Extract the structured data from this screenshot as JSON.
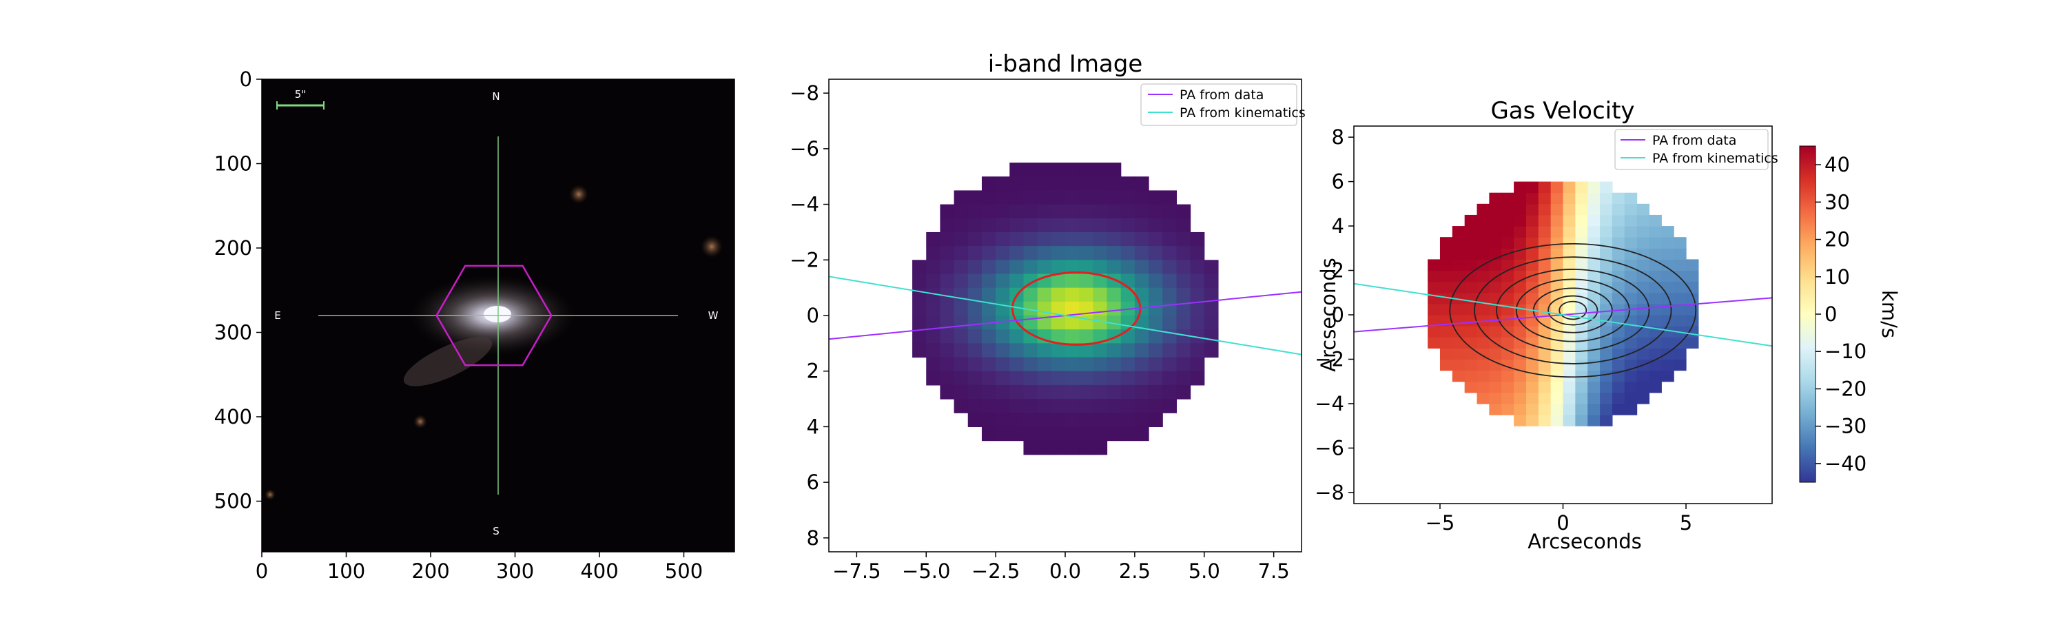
{
  "chart_data": [
    {
      "type": "image",
      "panel": "optical-cutout",
      "title": "",
      "xlabel": "",
      "ylabel": "",
      "xlim": [
        0,
        560
      ],
      "ylim": [
        560,
        0
      ],
      "xticks": [
        "0",
        "100",
        "200",
        "300",
        "400",
        "500"
      ],
      "yticks": [
        "0",
        "100",
        "200",
        "300",
        "400",
        "500"
      ],
      "scalebar_label": "5\"",
      "compass": {
        "north": "N",
        "south": "S",
        "east": "E",
        "west": "W"
      },
      "galaxy_center": [
        280,
        280
      ],
      "ifu_hexagon_center": [
        275,
        280
      ],
      "ifu_hexagon_halfwidth": 68,
      "colors": {
        "hexagon": "#c81ec8",
        "crosshair": "#7ec87e",
        "scalebar": "#7ddc7d",
        "background": "#000000"
      }
    },
    {
      "type": "heatmap",
      "panel": "i-band",
      "title": "i-band Image",
      "xlabel": "",
      "ylabel": "",
      "xlim": [
        -8.5,
        8.5
      ],
      "ylim": [
        8.5,
        -8.5
      ],
      "xticks": [
        "−7.5",
        "−5.0",
        "−2.5",
        "0.0",
        "2.5",
        "5.0",
        "7.5"
      ],
      "yticks": [
        "−8",
        "−6",
        "−4",
        "−2",
        "0",
        "2",
        "4",
        "6",
        "8"
      ],
      "pixel_size": 0.5,
      "colormap": "viridis",
      "legend": {
        "position": "top-right",
        "items": [
          {
            "label": "PA from data",
            "color": "#9b30ff"
          },
          {
            "label": "PA from kinematics",
            "color": "#40e0d0"
          }
        ]
      },
      "pa_lines": [
        {
          "label": "PA from data",
          "slope": 0.1,
          "color": "#9b30ff"
        },
        {
          "label": "PA from kinematics",
          "slope": -0.165,
          "color": "#40e0d0"
        }
      ],
      "ellipse": {
        "center": [
          0.4,
          -0.25
        ],
        "rx": 2.3,
        "ry": 1.3,
        "color": "#e02020"
      }
    },
    {
      "type": "heatmap",
      "panel": "gas-velocity",
      "title": "Gas Velocity",
      "xlabel": "Arcseconds",
      "ylabel": "Arcseconds",
      "xlim": [
        -8.5,
        8.5
      ],
      "ylim": [
        -8.5,
        8.5
      ],
      "xticks": [
        "−5",
        "0",
        "5"
      ],
      "yticks": [
        "8",
        "6",
        "4",
        "2",
        "0",
        "−2",
        "−4",
        "−6",
        "−8"
      ],
      "pixel_size": 0.5,
      "colormap": "RdYlBu_r",
      "legend": {
        "position": "top-right",
        "items": [
          {
            "label": "PA from data",
            "color": "#9b30ff"
          },
          {
            "label": "PA from kinematics",
            "color": "#40e0d0"
          }
        ]
      },
      "pa_lines": [
        {
          "label": "PA from data",
          "slope": 0.09,
          "color": "#9b30ff"
        },
        {
          "label": "PA from kinematics",
          "slope": -0.165,
          "color": "#40e0d0"
        }
      ],
      "contours_center": [
        0.4,
        0.2
      ],
      "colorbar": {
        "label": "km/s",
        "min": -45,
        "max": 45,
        "ticks": [
          "40",
          "30",
          "20",
          "10",
          "0",
          "−10",
          "−20",
          "−30",
          "−40"
        ]
      }
    }
  ]
}
